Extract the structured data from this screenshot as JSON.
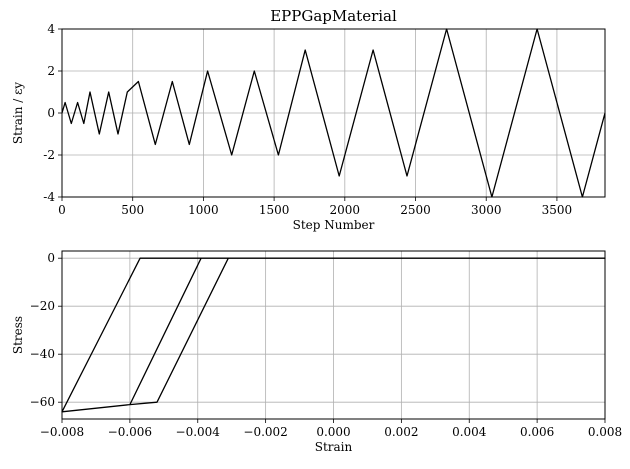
{
  "chart_data": [
    {
      "type": "line",
      "title": "EPPGapMaterial",
      "xlabel": "Step Number",
      "ylabel": "Strain / εy",
      "xlim": [
        0,
        3840
      ],
      "ylim": [
        -4,
        4
      ],
      "xticks": [
        0,
        500,
        1000,
        1500,
        2000,
        2500,
        3000,
        3500
      ],
      "yticks": [
        -4,
        -2,
        0,
        2,
        4
      ],
      "grid": true,
      "series": [
        {
          "x": [
            0,
            22,
            66,
            110,
            154,
            198,
            264,
            330,
            396,
            462,
            540,
            660,
            780,
            900,
            1030,
            1200,
            1360,
            1530,
            1720,
            1960,
            2200,
            2440,
            2720,
            3040,
            3360,
            3680,
            3840
          ],
          "y": [
            0,
            0.5,
            -0.5,
            0.5,
            -0.5,
            1.0,
            -1.0,
            1.0,
            -1.0,
            1.0,
            1.5,
            -1.5,
            1.5,
            -1.5,
            2.0,
            -2.0,
            2.0,
            -2.0,
            3.0,
            -3.0,
            3.0,
            -3.0,
            4.0,
            -4.0,
            4.0,
            -4.0,
            0
          ]
        }
      ]
    },
    {
      "type": "line",
      "title": "",
      "xlabel": "Strain",
      "ylabel": "Stress",
      "xlim": [
        -0.008,
        0.008
      ],
      "ylim": [
        -67,
        3
      ],
      "xticks": [
        -0.008,
        -0.006,
        -0.004,
        -0.002,
        0.0,
        0.002,
        0.004,
        0.006,
        0.008
      ],
      "xtick_labels": [
        "−0.008",
        "−0.006",
        "−0.004",
        "−0.002",
        "0.000",
        "0.002",
        "0.004",
        "0.006",
        "0.008"
      ],
      "yticks": [
        0,
        -20,
        -40,
        -60
      ],
      "ytick_labels": [
        "0",
        "−20",
        "−40",
        "−60"
      ],
      "grid": true,
      "series": [
        {
          "x": [
            0.008,
            -0.0031,
            -0.0052,
            -0.006,
            -0.008,
            -0.0057,
            0.008,
            -0.0039,
            -0.006,
            -0.0039,
            0.008,
            -0.0057,
            -0.008,
            -0.0057,
            0.008,
            -0.0031
          ],
          "y": [
            0,
            0,
            -60,
            -61,
            -64,
            0,
            0,
            0,
            -61,
            0,
            0,
            0,
            -64,
            0,
            0,
            0
          ]
        }
      ]
    }
  ]
}
